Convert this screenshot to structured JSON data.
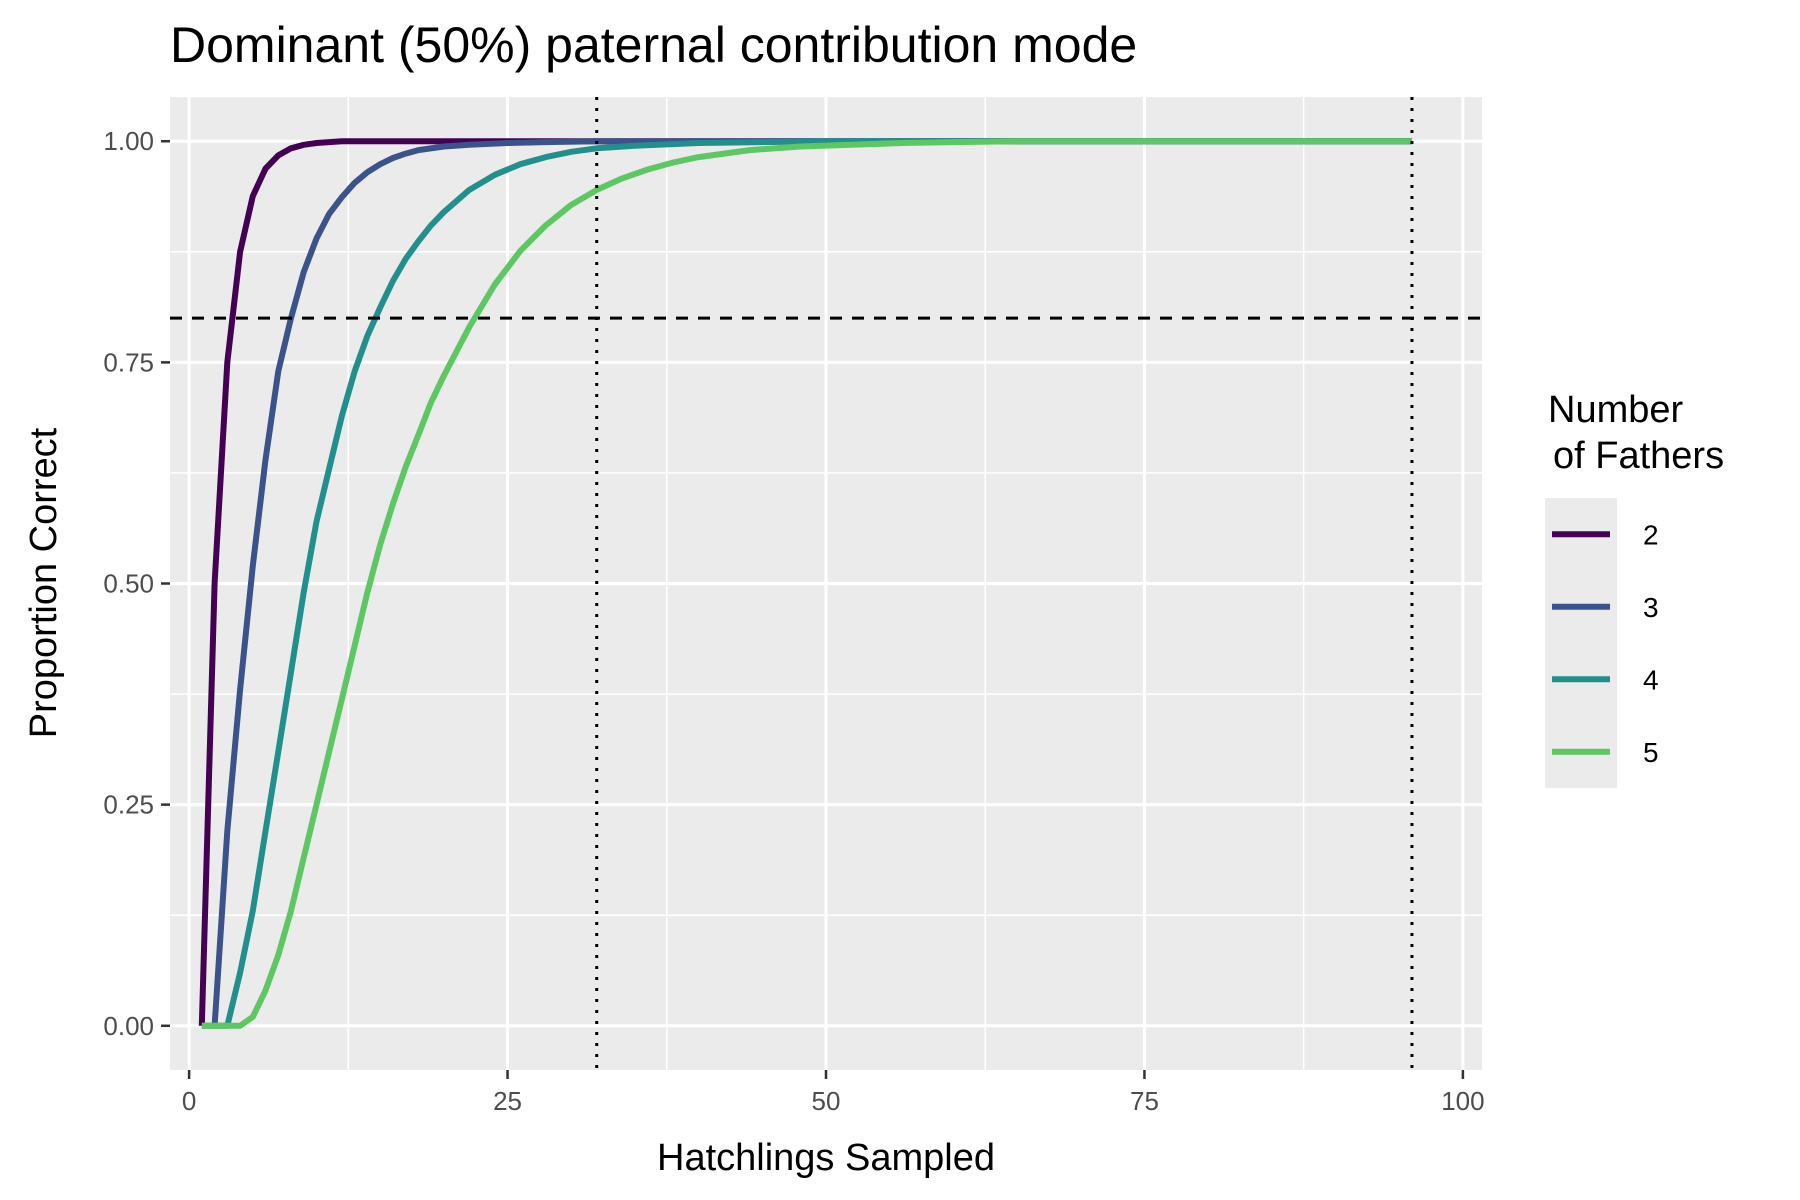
{
  "chart_data": {
    "type": "line",
    "title": "Dominant (50%) paternal contribution mode",
    "xlabel": "Hatchlings Sampled",
    "ylabel": "Proportion Correct",
    "xlim": [
      -1.5,
      101.5
    ],
    "ylim": [
      -0.05,
      1.05
    ],
    "x_ticks": [
      0,
      25,
      50,
      75,
      100
    ],
    "x_tick_labels": [
      "0",
      "25",
      "50",
      "75",
      "100"
    ],
    "y_ticks": [
      0,
      0.25,
      0.5,
      0.75,
      1.0
    ],
    "y_tick_labels": [
      "0.00",
      "0.25",
      "0.50",
      "0.75",
      "1.00"
    ],
    "legend": {
      "title_line1": "Number",
      "title_line2": "of Fathers",
      "position": "right"
    },
    "reference_lines": {
      "horizontal_dashed_y": 0.8,
      "vertical_dotted_x": [
        32,
        96
      ]
    },
    "series": [
      {
        "name": "2",
        "color": "#440154",
        "x": [
          1,
          2,
          3,
          4,
          5,
          6,
          7,
          8,
          9,
          10,
          11,
          12,
          14,
          16,
          20,
          25,
          30,
          40,
          50,
          60,
          70,
          80,
          90,
          96
        ],
        "y": [
          0.0,
          0.5,
          0.75,
          0.875,
          0.938,
          0.969,
          0.984,
          0.992,
          0.996,
          0.998,
          0.999,
          1.0,
          1.0,
          1.0,
          1.0,
          1.0,
          1.0,
          1.0,
          1.0,
          1.0,
          1.0,
          1.0,
          1.0,
          1.0
        ]
      },
      {
        "name": "3",
        "color": "#3B528B",
        "x": [
          2,
          3,
          4,
          5,
          6,
          7,
          8,
          9,
          10,
          11,
          12,
          13,
          14,
          15,
          16,
          17,
          18,
          20,
          22,
          25,
          28,
          32,
          40,
          50,
          60,
          70,
          80,
          90,
          96
        ],
        "y": [
          0.0,
          0.22,
          0.38,
          0.52,
          0.64,
          0.74,
          0.8,
          0.852,
          0.89,
          0.918,
          0.937,
          0.953,
          0.965,
          0.974,
          0.981,
          0.986,
          0.99,
          0.994,
          0.996,
          0.998,
          0.999,
          1.0,
          1.0,
          1.0,
          1.0,
          1.0,
          1.0,
          1.0,
          1.0
        ]
      },
      {
        "name": "4",
        "color": "#21908C",
        "x": [
          1,
          2,
          3,
          4,
          5,
          6,
          7,
          8,
          9,
          10,
          11,
          12,
          13,
          14,
          15,
          16,
          17,
          18,
          19,
          20,
          22,
          24,
          26,
          28,
          30,
          32,
          35,
          40,
          45,
          50,
          60,
          70,
          80,
          90,
          96
        ],
        "y": [
          0.0,
          0.0,
          0.0,
          0.06,
          0.13,
          0.22,
          0.31,
          0.4,
          0.49,
          0.57,
          0.63,
          0.69,
          0.74,
          0.78,
          0.812,
          0.842,
          0.867,
          0.887,
          0.905,
          0.92,
          0.945,
          0.962,
          0.974,
          0.982,
          0.988,
          0.992,
          0.995,
          0.998,
          0.999,
          1.0,
          1.0,
          1.0,
          1.0,
          1.0,
          1.0
        ]
      },
      {
        "name": "5",
        "color": "#5DC863",
        "x": [
          1,
          2,
          3,
          4,
          5,
          6,
          7,
          8,
          9,
          10,
          11,
          12,
          13,
          14,
          15,
          16,
          17,
          18,
          19,
          20,
          22,
          24,
          26,
          28,
          30,
          32,
          34,
          36,
          38,
          40,
          44,
          48,
          52,
          56,
          60,
          65,
          70,
          80,
          90,
          96
        ],
        "y": [
          0.0,
          0.0,
          0.0,
          0.0,
          0.01,
          0.04,
          0.08,
          0.13,
          0.19,
          0.25,
          0.31,
          0.37,
          0.43,
          0.49,
          0.544,
          0.59,
          0.632,
          0.668,
          0.705,
          0.735,
          0.79,
          0.838,
          0.876,
          0.905,
          0.928,
          0.945,
          0.958,
          0.968,
          0.976,
          0.982,
          0.99,
          0.994,
          0.996,
          0.998,
          0.999,
          1.0,
          1.0,
          1.0,
          1.0,
          1.0
        ]
      }
    ]
  }
}
